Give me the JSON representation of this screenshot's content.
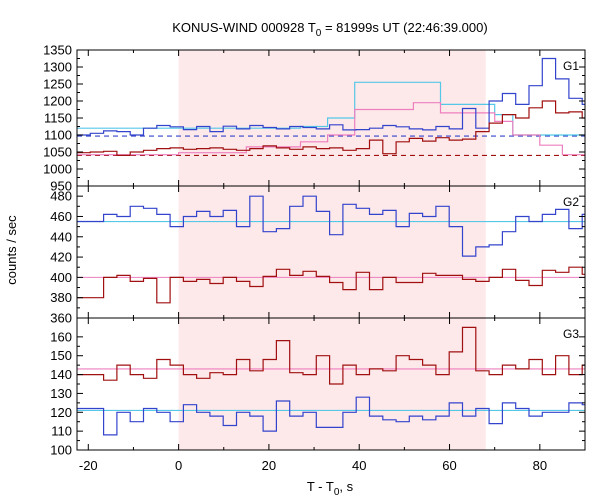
{
  "chart_data": {
    "type": "line",
    "title": "KONUS-WIND 000928 T0 = 81999s UT (22:46:39.000)",
    "title_parts": {
      "prefix": "KONUS-WIND 000928 T",
      "sub": "0",
      "suffix": " = 81999s UT (22:46:39.000)"
    },
    "xlabel": "T - T0, s",
    "xlabel_parts": {
      "prefix": "T - T",
      "sub": "0",
      "suffix": ", s"
    },
    "ylabel": "counts / sec",
    "xlim": [
      -22.5,
      90
    ],
    "x_ticks": [
      -20,
      0,
      20,
      40,
      60,
      80
    ],
    "highlight_interval": {
      "x0": 0,
      "x1": 68,
      "color": "#fde8ea"
    },
    "colors": {
      "blue": "#3344cc",
      "red": "#a01010",
      "cyan": "#55c8e8",
      "pink": "#ee7fbf"
    },
    "panels": [
      {
        "label": "G1",
        "ylim": [
          950,
          1350
        ],
        "y_ticks": [
          950,
          1000,
          1050,
          1100,
          1150,
          1200,
          1250,
          1300,
          1350
        ],
        "step_start": -22.5,
        "step_width": 2.944,
        "series": [
          {
            "color": "blue",
            "values": [
              1100,
              1105,
              1112,
              1110,
              1100,
              1120,
              1128,
              1124,
              1116,
              1125,
              1110,
              1126,
              1118,
              1128,
              1122,
              1118,
              1125,
              1122,
              1118,
              1130,
              1115,
              1116,
              1120,
              1128,
              1124,
              1118,
              1115,
              1125,
              1118,
              1178,
              1120,
              1200,
              1222,
              1190,
              1245,
              1325,
              1265,
              1208,
              1190,
              1195,
              1192,
              1180,
              1200,
              1160,
              1100,
              1130,
              1110,
              1120,
              1098,
              1105,
              1102,
              1100,
              1106,
              1098,
              1100,
              1102,
              1098,
              1100,
              1098
            ]
          },
          {
            "color": "red",
            "values": [
              1048,
              1050,
              1052,
              1040,
              1050,
              1055,
              1060,
              1062,
              1058,
              1060,
              1062,
              1058,
              1055,
              1060,
              1068,
              1062,
              1058,
              1065,
              1060,
              1062,
              1055,
              1060,
              1085,
              1045,
              1080,
              1090,
              1082,
              1092,
              1085,
              1088,
              1110,
              1135,
              1160,
              1150,
              1180,
              1200,
              1165,
              1168,
              1150,
              1170,
              1162,
              1148,
              1140,
              1120,
              1100,
              1060,
              1070,
              1080,
              1060,
              1080,
              1060,
              1042,
              1060,
              1065,
              1060,
              1055,
              1060,
              1062,
              1058
            ]
          }
        ],
        "fit_steps": [
          {
            "color": "cyan",
            "x": [
              -22.5,
              -20,
              -11.5,
              0,
              12,
              27,
              33,
              39,
              52,
              58,
              70,
              74,
              90
            ],
            "values": [
              1120,
              1120,
              1120,
              1120,
              1120,
              1125,
              1150,
              1255,
              1255,
              1190,
              1160,
              1100,
              1100
            ]
          },
          {
            "color": "pink",
            "x": [
              -22.5,
              -11.5,
              0,
              15,
              27,
              33,
              39,
              52,
              58,
              70,
              74,
              80,
              85,
              90
            ],
            "values": [
              1042,
              1042,
              1048,
              1065,
              1080,
              1100,
              1175,
              1195,
              1165,
              1140,
              1100,
              1070,
              1042,
              1042
            ]
          }
        ],
        "backgrounds": [
          {
            "color": "blue",
            "style": "dashed",
            "value": 1097
          },
          {
            "color": "red",
            "style": "dashed",
            "value": 1040
          }
        ]
      },
      {
        "label": "G2",
        "ylim": [
          360,
          490
        ],
        "y_ticks": [
          360,
          380,
          400,
          420,
          440,
          460,
          480
        ],
        "step_start": -22.5,
        "step_width": 2.944,
        "series": [
          {
            "color": "blue",
            "values": [
              455,
              455,
              462,
              460,
              470,
              468,
              462,
              450,
              460,
              465,
              460,
              466,
              450,
              480,
              445,
              448,
              470,
              480,
              465,
              442,
              472,
              468,
              462,
              466,
              450,
              463,
              460,
              470,
              450,
              421,
              430,
              432,
              445,
              460,
              455,
              462,
              467,
              448,
              462,
              462,
              462,
              460,
              456,
              462,
              470,
              466,
              470,
              465,
              455,
              460,
              458,
              460,
              462,
              460,
              455,
              462,
              460,
              458,
              458
            ]
          },
          {
            "color": "red",
            "values": [
              380,
              380,
              400,
              402,
              396,
              399,
              375,
              400,
              396,
              398,
              394,
              400,
              396,
              391,
              401,
              408,
              402,
              406,
              401,
              395,
              388,
              405,
              388,
              400,
              395,
              395,
              404,
              402,
              402,
              398,
              396,
              400,
              408,
              397,
              392,
              407,
              405,
              410,
              403,
              398,
              410,
              402,
              395,
              410,
              388,
              392,
              390,
              392,
              398,
              390,
              400,
              400,
              396,
              390,
              394,
              400,
              388,
              394,
              390
            ]
          }
        ],
        "fits": [
          {
            "color": "cyan",
            "value": 455
          },
          {
            "color": "pink",
            "value": 400
          }
        ]
      },
      {
        "label": "G3",
        "ylim": [
          100,
          170
        ],
        "y_ticks": [
          100,
          110,
          120,
          130,
          140,
          150,
          160
        ],
        "step_start": -22.5,
        "step_width": 2.944,
        "series": [
          {
            "color": "blue",
            "values": [
              122,
              122,
              108,
              120,
              115,
              122,
              120,
              115,
              124,
              120,
              118,
              113,
              120,
              118,
              110,
              126,
              118,
              120,
              112,
              112,
              120,
              128,
              118,
              116,
              115,
              118,
              116,
              118,
              125,
              118,
              122,
              114,
              125,
              122,
              118,
              120,
              120,
              125,
              124,
              118,
              122,
              120,
              118,
              120,
              120,
              130,
              115,
              120,
              120,
              122,
              118,
              122,
              113,
              127,
              125,
              130,
              120,
              130,
              113
            ]
          },
          {
            "color": "red",
            "values": [
              140,
              140,
              137,
              145,
              140,
              138,
              148,
              145,
              140,
              138,
              141,
              140,
              148,
              142,
              148,
              158,
              141,
              140,
              150,
              135,
              145,
              140,
              143,
              142,
              150,
              148,
              145,
              140,
              152,
              165,
              142,
              140,
              145,
              143,
              148,
              140,
              150,
              140,
              145,
              140,
              142,
              135,
              140,
              139,
              136,
              140,
              137,
              144,
              148,
              148,
              148,
              148,
              148,
              146,
              147,
              138,
              145,
              140,
              142
            ]
          }
        ],
        "fits": [
          {
            "color": "cyan",
            "value": 121
          },
          {
            "color": "pink",
            "value": 143
          }
        ]
      }
    ]
  }
}
